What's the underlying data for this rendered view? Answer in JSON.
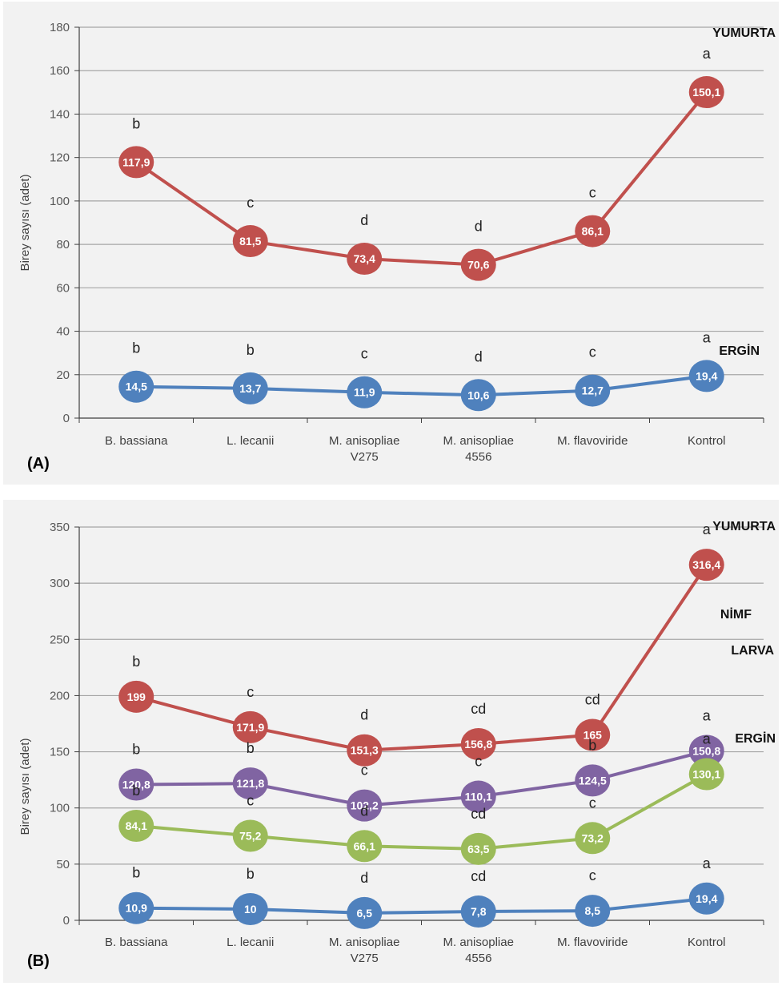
{
  "chart_data": [
    {
      "type": "line",
      "panel_label": "(A)",
      "ylabel": "Birey sayısı (adet)",
      "ylim": [
        0,
        180
      ],
      "yticks": [
        0,
        20,
        40,
        60,
        80,
        100,
        120,
        140,
        160,
        180
      ],
      "grid": true,
      "categories": [
        [
          "B. bassiana"
        ],
        [
          "L. lecanii"
        ],
        [
          "M. anisopliae",
          "V275"
        ],
        [
          "M. anisopliae",
          "4556"
        ],
        [
          "M. flavoviride"
        ],
        [
          "Kontrol"
        ]
      ],
      "series": [
        {
          "name": "YUMURTA",
          "color": "#c0504d",
          "values": [
            117.9,
            81.5,
            73.4,
            70.6,
            86.1,
            150.1
          ],
          "value_labels": [
            "117,9",
            "81,5",
            "73,4",
            "70,6",
            "86,1",
            "150,1"
          ],
          "letters": [
            "b",
            "c",
            "d",
            "d",
            "c",
            "a"
          ]
        },
        {
          "name": "ERGİN",
          "color": "#4f81bd",
          "values": [
            14.5,
            13.7,
            11.9,
            10.6,
            12.7,
            19.4
          ],
          "value_labels": [
            "14,5",
            "13,7",
            "11,9",
            "10,6",
            "12,7",
            "19,4"
          ],
          "letters": [
            "b",
            "b",
            "c",
            "d",
            "c",
            "a"
          ]
        }
      ]
    },
    {
      "type": "line",
      "panel_label": "(B)",
      "ylabel": "Birey sayısı (adet)",
      "ylim": [
        0,
        350
      ],
      "yticks": [
        0,
        50,
        100,
        150,
        200,
        250,
        300,
        350
      ],
      "grid": true,
      "categories": [
        [
          "B. bassiana"
        ],
        [
          "L. lecanii"
        ],
        [
          "M. anisopliae",
          "V275"
        ],
        [
          "M. anisopliae",
          "4556"
        ],
        [
          "M. flavoviride"
        ],
        [
          "Kontrol"
        ]
      ],
      "series": [
        {
          "name": "YUMURTA",
          "color": "#c0504d",
          "values": [
            199,
            171.9,
            151.3,
            156.8,
            165,
            316.4
          ],
          "value_labels": [
            "199",
            "171,9",
            "151,3",
            "156,8",
            "165",
            "316,4"
          ],
          "letters": [
            "b",
            "c",
            "d",
            "cd",
            "cd",
            "a"
          ]
        },
        {
          "name": "NİMF",
          "color": "#8064a2",
          "values": [
            120.8,
            121.8,
            102.2,
            110.1,
            124.5,
            150.8
          ],
          "value_labels": [
            "120,8",
            "121,8",
            "102,2",
            "110,1",
            "124,5",
            "150,8"
          ],
          "letters": [
            "b",
            "b",
            "c",
            "c",
            "b",
            "a"
          ]
        },
        {
          "name": "LARVA",
          "color": "#9bbb59",
          "values": [
            84.1,
            75.2,
            66.1,
            63.5,
            73.2,
            130.1
          ],
          "value_labels": [
            "84,1",
            "75,2",
            "66,1",
            "63,5",
            "73,2",
            "130,1"
          ],
          "letters": [
            "b",
            "c",
            "d",
            "cd",
            "c",
            "a"
          ]
        },
        {
          "name": "ERGİN",
          "color": "#4f81bd",
          "values": [
            10.9,
            10,
            6.5,
            7.8,
            8.5,
            19.4
          ],
          "value_labels": [
            "10,9",
            "10",
            "6,5",
            "7,8",
            "8,5",
            "19,4"
          ],
          "letters": [
            "b",
            "b",
            "d",
            "cd",
            "c",
            "a"
          ]
        }
      ]
    }
  ]
}
